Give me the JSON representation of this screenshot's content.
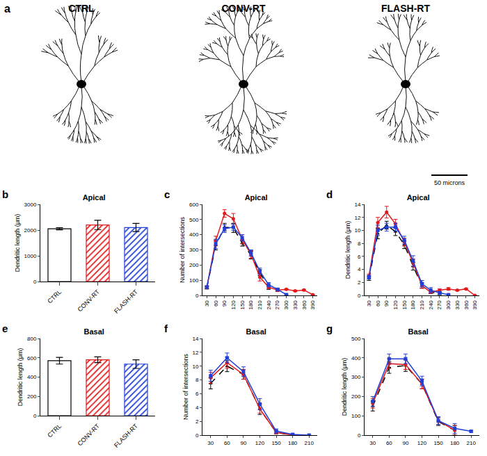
{
  "panel_a": {
    "panel": "a",
    "titles": [
      "CTRL",
      "CONV-RT",
      "FLASH-RT"
    ],
    "scale_bar": "50 microns"
  },
  "chart_data": [
    {
      "type": "bar",
      "panel": "b",
      "title": "Apical",
      "y_label": "Dendritic length (μm)",
      "categories": [
        "CTRL",
        "CONV-RT",
        "FLASH-RT"
      ],
      "values": [
        2050,
        2200,
        2100
      ],
      "errors": [
        40,
        180,
        160
      ],
      "colors": [
        "#ffffff",
        "#e31a1c",
        "#1f3fd6"
      ],
      "ylim": [
        0,
        3000
      ],
      "yticks": [
        0,
        1000,
        2000,
        3000
      ]
    },
    {
      "type": "line",
      "panel": "c",
      "title": "Apical",
      "y_label": "Number of intersections",
      "x": [
        30,
        60,
        90,
        120,
        150,
        180,
        210,
        240,
        270,
        300,
        330,
        360,
        390
      ],
      "xlim": [
        15,
        405
      ],
      "xticks": [
        30,
        60,
        90,
        120,
        150,
        180,
        210,
        240,
        270,
        300,
        330,
        360,
        390
      ],
      "ylim": [
        0,
        600
      ],
      "yticks": [
        0,
        100,
        200,
        300,
        400,
        500,
        600
      ],
      "series": [
        {
          "name": "CTRL",
          "color": "#000000",
          "marker": "triangle",
          "line_style": "dashed",
          "values": [
            50,
            330,
            450,
            445,
            345,
            265,
            150,
            50,
            35,
            null,
            null,
            null,
            null
          ],
          "errors": [
            8,
            30,
            25,
            30,
            20,
            25,
            20,
            10,
            8,
            null,
            null,
            null,
            null
          ]
        },
        {
          "name": "CONV-RT",
          "color": "#e31a1c",
          "marker": "circle",
          "line_style": "solid",
          "values": [
            55,
            360,
            540,
            505,
            370,
            270,
            120,
            55,
            35,
            40,
            30,
            35,
            5
          ],
          "errors": [
            8,
            30,
            25,
            35,
            30,
            25,
            25,
            10,
            8,
            5,
            5,
            5,
            2
          ]
        },
        {
          "name": "FLASH-RT",
          "color": "#1f3fd6",
          "marker": "square",
          "line_style": "solid",
          "values": [
            55,
            340,
            440,
            450,
            380,
            280,
            160,
            70,
            40,
            5,
            null,
            null,
            null
          ],
          "errors": [
            8,
            30,
            25,
            20,
            20,
            20,
            20,
            15,
            8,
            3,
            null,
            null,
            null
          ]
        }
      ]
    },
    {
      "type": "line",
      "panel": "d",
      "title": "Apical",
      "y_label": "Dendritic length (μm)",
      "x": [
        30,
        60,
        90,
        120,
        150,
        180,
        210,
        240,
        270,
        300,
        330,
        360,
        390
      ],
      "xlim": [
        15,
        405
      ],
      "xticks": [
        30,
        60,
        90,
        120,
        150,
        180,
        210,
        240,
        270,
        300,
        330,
        360,
        390
      ],
      "ylim": [
        0,
        14
      ],
      "yticks": [
        0,
        2,
        4,
        6,
        8,
        10,
        12,
        14
      ],
      "series": [
        {
          "name": "CTRL",
          "color": "#000000",
          "marker": "triangle",
          "line_style": "dashed",
          "values": [
            2.6,
            9.5,
            10.8,
            9.8,
            7.8,
            4.5,
            1.5,
            0.5,
            0.3,
            null,
            null,
            null,
            null
          ],
          "errors": [
            0.3,
            0.8,
            0.6,
            0.6,
            0.6,
            0.6,
            0.4,
            0.2,
            0.2,
            null,
            null,
            null,
            null
          ]
        },
        {
          "name": "CONV-RT",
          "color": "#e31a1c",
          "marker": "circle",
          "line_style": "solid",
          "values": [
            3,
            11.2,
            12.8,
            11,
            8.2,
            5,
            1.5,
            0.5,
            0.8,
            1,
            0.8,
            1,
            0
          ],
          "errors": [
            0.3,
            0.8,
            0.9,
            0.7,
            0.6,
            0.6,
            0.4,
            0.2,
            0.2,
            0.2,
            0.1,
            0.1,
            0
          ]
        },
        {
          "name": "FLASH-RT",
          "color": "#1f3fd6",
          "marker": "square",
          "line_style": "solid",
          "values": [
            2.8,
            10,
            10.5,
            10.5,
            8.5,
            5.3,
            1.8,
            0.8,
            0.4,
            0.1,
            null,
            null,
            null
          ],
          "errors": [
            0.3,
            0.8,
            0.6,
            0.6,
            0.6,
            0.8,
            0.5,
            0.4,
            0.2,
            0.1,
            null,
            null,
            null
          ]
        }
      ]
    },
    {
      "type": "bar",
      "panel": "e",
      "title": "Basal",
      "y_label": "Dendritic length (μm)",
      "categories": [
        "CTRL",
        "CONV-RT",
        "FLASH-RT"
      ],
      "values": [
        570,
        580,
        535
      ],
      "errors": [
        35,
        30,
        45
      ],
      "colors": [
        "#ffffff",
        "#e31a1c",
        "#1f3fd6"
      ],
      "ylim": [
        0,
        800
      ],
      "yticks": [
        0,
        200,
        400,
        600,
        800
      ]
    },
    {
      "type": "line",
      "panel": "f",
      "title": "Basal",
      "y_label": "Number of intersections",
      "x": [
        30,
        60,
        90,
        120,
        150,
        180,
        210
      ],
      "xlim": [
        15,
        225
      ],
      "xticks": [
        30,
        60,
        90,
        120,
        150,
        180,
        210
      ],
      "ylim": [
        0,
        14
      ],
      "yticks": [
        0,
        2,
        4,
        6,
        8,
        10,
        12,
        14
      ],
      "series": [
        {
          "name": "CTRL",
          "color": "#000000",
          "marker": "triangle",
          "line_style": "dashed",
          "values": [
            7.5,
            10,
            8.8,
            3.8,
            0.4,
            0,
            null
          ],
          "errors": [
            0.8,
            0.8,
            0.7,
            0.8,
            0.2,
            0,
            null
          ]
        },
        {
          "name": "CONV-RT",
          "color": "#e31a1c",
          "marker": "circle",
          "line_style": "solid",
          "values": [
            8.3,
            10.5,
            8.8,
            3.8,
            0.4,
            0,
            null
          ],
          "errors": [
            0.8,
            0.8,
            0.7,
            0.6,
            0.2,
            0,
            null
          ]
        },
        {
          "name": "FLASH-RT",
          "color": "#1f3fd6",
          "marker": "square",
          "line_style": "solid",
          "values": [
            8.6,
            11.2,
            9.2,
            4.5,
            0.6,
            0.1,
            0
          ],
          "errors": [
            0.8,
            0.7,
            0.7,
            0.8,
            0.3,
            0.1,
            0
          ]
        }
      ]
    },
    {
      "type": "line",
      "panel": "g",
      "title": "Basal",
      "y_label": "Dendritic length (μm)",
      "x": [
        30,
        60,
        90,
        120,
        150,
        180,
        210
      ],
      "xlim": [
        15,
        225
      ],
      "xticks": [
        30,
        60,
        90,
        120,
        150,
        180,
        210
      ],
      "ylim": [
        0,
        500
      ],
      "yticks": [
        0,
        100,
        200,
        300,
        400,
        500
      ],
      "series": [
        {
          "name": "CTRL",
          "color": "#000000",
          "marker": "triangle",
          "line_style": "dashed",
          "values": [
            150,
            350,
            360,
            265,
            70,
            25,
            null
          ],
          "errors": [
            25,
            30,
            30,
            25,
            20,
            25,
            null
          ]
        },
        {
          "name": "CONV-RT",
          "color": "#e31a1c",
          "marker": "circle",
          "line_style": "solid",
          "values": [
            165,
            370,
            365,
            265,
            75,
            25,
            null
          ],
          "errors": [
            25,
            25,
            25,
            25,
            20,
            25,
            null
          ]
        },
        {
          "name": "FLASH-RT",
          "color": "#1f3fd6",
          "marker": "square",
          "line_style": "solid",
          "values": [
            175,
            395,
            395,
            280,
            75,
            35,
            20
          ],
          "errors": [
            25,
            25,
            25,
            25,
            20,
            25,
            5
          ]
        }
      ]
    }
  ]
}
